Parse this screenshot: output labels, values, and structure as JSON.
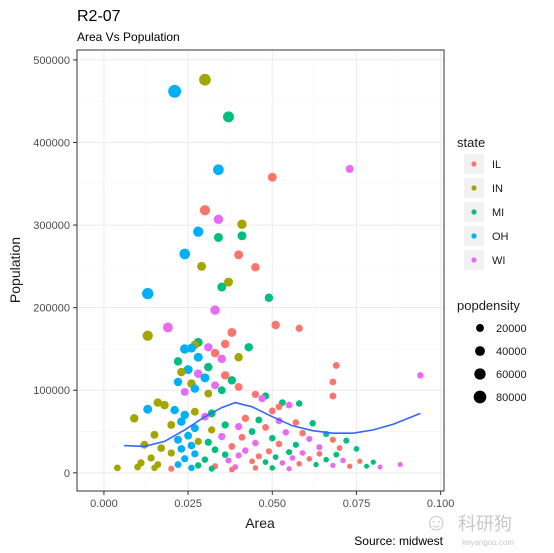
{
  "chart_data": {
    "type": "scatter",
    "title": "R2-07",
    "subtitle": "Area Vs Population",
    "xlabel": "Area",
    "ylabel": "Population",
    "caption": "Source: midwest",
    "xlim": [
      -0.008,
      0.101
    ],
    "ylim": [
      -22000,
      512000
    ],
    "x_ticks": [
      0.0,
      0.025,
      0.05,
      0.075,
      0.1
    ],
    "x_tick_labels": [
      "0.000",
      "0.025",
      "0.050",
      "0.075",
      "0.100"
    ],
    "y_ticks": [
      0,
      100000,
      200000,
      300000,
      400000,
      500000
    ],
    "y_tick_labels": [
      "0",
      "100000",
      "200000",
      "300000",
      "400000",
      "500000"
    ],
    "grid": true,
    "legend_position": "right",
    "color_legend": {
      "title": "state",
      "entries": [
        {
          "label": "IL",
          "color": "#F8766D"
        },
        {
          "label": "IN",
          "color": "#A3A500"
        },
        {
          "label": "MI",
          "color": "#00BF7D"
        },
        {
          "label": "OH",
          "color": "#00B0F6"
        },
        {
          "label": "WI",
          "color": "#E76BF3"
        }
      ]
    },
    "size_legend": {
      "title": "popdensity",
      "entries": [
        {
          "label": "20000",
          "value": 20000
        },
        {
          "label": "40000",
          "value": 40000
        },
        {
          "label": "60000",
          "value": 60000
        },
        {
          "label": "80000",
          "value": 80000
        }
      ]
    },
    "points": [
      {
        "state": "OH",
        "area": 0.021,
        "pop": 462000,
        "pd": 85000
      },
      {
        "state": "IN",
        "area": 0.03,
        "pop": 476000,
        "pd": 65000
      },
      {
        "state": "MI",
        "area": 0.037,
        "pop": 431000,
        "pd": 55000
      },
      {
        "state": "WI",
        "area": 0.073,
        "pop": 368000,
        "pd": 20000
      },
      {
        "state": "OH",
        "area": 0.034,
        "pop": 367000,
        "pd": 50000
      },
      {
        "state": "IL",
        "area": 0.05,
        "pop": 358000,
        "pd": 30000
      },
      {
        "state": "IL",
        "area": 0.03,
        "pop": 318000,
        "pd": 45000
      },
      {
        "state": "WI",
        "area": 0.034,
        "pop": 307000,
        "pd": 35000
      },
      {
        "state": "IN",
        "area": 0.041,
        "pop": 301000,
        "pd": 35000
      },
      {
        "state": "OH",
        "area": 0.028,
        "pop": 292000,
        "pd": 45000
      },
      {
        "state": "MI",
        "area": 0.034,
        "pop": 285000,
        "pd": 30000
      },
      {
        "state": "MI",
        "area": 0.041,
        "pop": 287000,
        "pd": 30000
      },
      {
        "state": "OH",
        "area": 0.024,
        "pop": 265000,
        "pd": 50000
      },
      {
        "state": "IL",
        "area": 0.04,
        "pop": 264000,
        "pd": 30000
      },
      {
        "state": "IN",
        "area": 0.029,
        "pop": 250000,
        "pd": 30000
      },
      {
        "state": "IL",
        "area": 0.045,
        "pop": 249000,
        "pd": 25000
      },
      {
        "state": "MI",
        "area": 0.035,
        "pop": 225000,
        "pd": 30000
      },
      {
        "state": "IN",
        "area": 0.037,
        "pop": 231000,
        "pd": 30000
      },
      {
        "state": "OH",
        "area": 0.013,
        "pop": 217000,
        "pd": 60000
      },
      {
        "state": "MI",
        "area": 0.049,
        "pop": 212000,
        "pd": 25000
      },
      {
        "state": "WI",
        "area": 0.033,
        "pop": 197000,
        "pd": 35000
      },
      {
        "state": "IL",
        "area": 0.051,
        "pop": 179000,
        "pd": 25000
      },
      {
        "state": "IL",
        "area": 0.058,
        "pop": 175000,
        "pd": 15000
      },
      {
        "state": "WI",
        "area": 0.019,
        "pop": 176000,
        "pd": 40000
      },
      {
        "state": "IN",
        "area": 0.013,
        "pop": 166000,
        "pd": 45000
      },
      {
        "state": "MI",
        "area": 0.028,
        "pop": 158000,
        "pd": 30000
      },
      {
        "state": "IN",
        "area": 0.027,
        "pop": 155000,
        "pd": 25000
      },
      {
        "state": "IL",
        "area": 0.038,
        "pop": 170000,
        "pd": 30000
      },
      {
        "state": "IL",
        "area": 0.036,
        "pop": 156000,
        "pd": 25000
      },
      {
        "state": "OH",
        "area": 0.024,
        "pop": 150000,
        "pd": 35000
      },
      {
        "state": "OH",
        "area": 0.026,
        "pop": 151000,
        "pd": 30000
      },
      {
        "state": "WI",
        "area": 0.031,
        "pop": 152000,
        "pd": 25000
      },
      {
        "state": "MI",
        "area": 0.043,
        "pop": 152000,
        "pd": 25000
      },
      {
        "state": "IL",
        "area": 0.069,
        "pop": 130000,
        "pd": 12000
      },
      {
        "state": "IL",
        "area": 0.068,
        "pop": 110000,
        "pd": 12000
      },
      {
        "state": "WI",
        "area": 0.094,
        "pop": 118000,
        "pd": 10000
      },
      {
        "state": "IL",
        "area": 0.068,
        "pop": 93000,
        "pd": 12000
      },
      {
        "state": "IL",
        "area": 0.033,
        "pop": 145000,
        "pd": 25000
      },
      {
        "state": "OH",
        "area": 0.028,
        "pop": 140000,
        "pd": 30000
      },
      {
        "state": "MI",
        "area": 0.022,
        "pop": 135000,
        "pd": 25000
      },
      {
        "state": "WI",
        "area": 0.035,
        "pop": 138000,
        "pd": 25000
      },
      {
        "state": "IN",
        "area": 0.04,
        "pop": 140000,
        "pd": 25000
      },
      {
        "state": "OH",
        "area": 0.025,
        "pop": 125000,
        "pd": 30000
      },
      {
        "state": "MI",
        "area": 0.031,
        "pop": 128000,
        "pd": 25000
      },
      {
        "state": "IN",
        "area": 0.023,
        "pop": 122000,
        "pd": 25000
      },
      {
        "state": "WI",
        "area": 0.028,
        "pop": 120000,
        "pd": 25000
      },
      {
        "state": "IL",
        "area": 0.036,
        "pop": 118000,
        "pd": 25000
      },
      {
        "state": "OH",
        "area": 0.03,
        "pop": 115000,
        "pd": 30000
      },
      {
        "state": "MI",
        "area": 0.038,
        "pop": 112000,
        "pd": 25000
      },
      {
        "state": "OH",
        "area": 0.022,
        "pop": 110000,
        "pd": 25000
      },
      {
        "state": "IN",
        "area": 0.026,
        "pop": 108000,
        "pd": 25000
      },
      {
        "state": "WI",
        "area": 0.033,
        "pop": 106000,
        "pd": 20000
      },
      {
        "state": "IL",
        "area": 0.04,
        "pop": 104000,
        "pd": 20000
      },
      {
        "state": "OH",
        "area": 0.027,
        "pop": 102000,
        "pd": 25000
      },
      {
        "state": "MI",
        "area": 0.035,
        "pop": 100000,
        "pd": 20000
      },
      {
        "state": "WI",
        "area": 0.024,
        "pop": 98000,
        "pd": 20000
      },
      {
        "state": "IN",
        "area": 0.031,
        "pop": 96000,
        "pd": 20000
      },
      {
        "state": "IL",
        "area": 0.045,
        "pop": 95000,
        "pd": 15000
      },
      {
        "state": "MI",
        "area": 0.048,
        "pop": 93000,
        "pd": 15000
      },
      {
        "state": "WI",
        "area": 0.047,
        "pop": 90000,
        "pd": 15000
      },
      {
        "state": "IN",
        "area": 0.016,
        "pop": 85000,
        "pd": 25000
      },
      {
        "state": "IN",
        "area": 0.018,
        "pop": 82000,
        "pd": 25000
      },
      {
        "state": "MI",
        "area": 0.053,
        "pop": 85000,
        "pd": 12000
      },
      {
        "state": "IL",
        "area": 0.052,
        "pop": 80000,
        "pd": 12000
      },
      {
        "state": "WI",
        "area": 0.055,
        "pop": 82000,
        "pd": 12000
      },
      {
        "state": "MI",
        "area": 0.058,
        "pop": 84000,
        "pd": 10000
      },
      {
        "state": "IL",
        "area": 0.05,
        "pop": 75000,
        "pd": 12000
      },
      {
        "state": "OH",
        "area": 0.013,
        "pop": 77000,
        "pd": 30000
      },
      {
        "state": "IN",
        "area": 0.009,
        "pop": 66000,
        "pd": 25000
      },
      {
        "state": "OH",
        "area": 0.021,
        "pop": 76000,
        "pd": 25000
      },
      {
        "state": "IN",
        "area": 0.027,
        "pop": 74000,
        "pd": 20000
      },
      {
        "state": "MI",
        "area": 0.032,
        "pop": 72000,
        "pd": 20000
      },
      {
        "state": "OH",
        "area": 0.024,
        "pop": 70000,
        "pd": 25000
      },
      {
        "state": "WI",
        "area": 0.03,
        "pop": 68000,
        "pd": 20000
      },
      {
        "state": "IL",
        "area": 0.042,
        "pop": 66000,
        "pd": 15000
      },
      {
        "state": "MI",
        "area": 0.046,
        "pop": 64000,
        "pd": 12000
      },
      {
        "state": "WI",
        "area": 0.052,
        "pop": 63000,
        "pd": 12000
      },
      {
        "state": "IL",
        "area": 0.057,
        "pop": 61000,
        "pd": 10000
      },
      {
        "state": "MI",
        "area": 0.062,
        "pop": 60000,
        "pd": 10000
      },
      {
        "state": "OH",
        "area": 0.023,
        "pop": 62000,
        "pd": 25000
      },
      {
        "state": "IN",
        "area": 0.02,
        "pop": 58000,
        "pd": 20000
      },
      {
        "state": "MI",
        "area": 0.036,
        "pop": 58000,
        "pd": 15000
      },
      {
        "state": "WI",
        "area": 0.04,
        "pop": 56000,
        "pd": 15000
      },
      {
        "state": "IL",
        "area": 0.048,
        "pop": 55000,
        "pd": 12000
      },
      {
        "state": "OH",
        "area": 0.027,
        "pop": 54000,
        "pd": 20000
      },
      {
        "state": "IN",
        "area": 0.032,
        "pop": 52000,
        "pd": 15000
      },
      {
        "state": "MI",
        "area": 0.044,
        "pop": 50000,
        "pd": 12000
      },
      {
        "state": "WI",
        "area": 0.054,
        "pop": 49000,
        "pd": 10000
      },
      {
        "state": "IL",
        "area": 0.059,
        "pop": 48000,
        "pd": 10000
      },
      {
        "state": "MI",
        "area": 0.066,
        "pop": 47000,
        "pd": 8000
      },
      {
        "state": "IN",
        "area": 0.015,
        "pop": 46000,
        "pd": 20000
      },
      {
        "state": "OH",
        "area": 0.025,
        "pop": 45000,
        "pd": 20000
      },
      {
        "state": "WI",
        "area": 0.035,
        "pop": 44000,
        "pd": 15000
      },
      {
        "state": "IL",
        "area": 0.041,
        "pop": 43000,
        "pd": 12000
      },
      {
        "state": "MI",
        "area": 0.05,
        "pop": 42000,
        "pd": 10000
      },
      {
        "state": "WI",
        "area": 0.061,
        "pop": 41000,
        "pd": 8000
      },
      {
        "state": "IL",
        "area": 0.068,
        "pop": 40000,
        "pd": 8000
      },
      {
        "state": "MI",
        "area": 0.072,
        "pop": 39000,
        "pd": 8000
      },
      {
        "state": "OH",
        "area": 0.022,
        "pop": 40000,
        "pd": 20000
      },
      {
        "state": "IN",
        "area": 0.028,
        "pop": 38000,
        "pd": 15000
      },
      {
        "state": "MI",
        "area": 0.031,
        "pop": 37000,
        "pd": 15000
      },
      {
        "state": "WI",
        "area": 0.045,
        "pop": 36000,
        "pd": 10000
      },
      {
        "state": "IL",
        "area": 0.052,
        "pop": 35000,
        "pd": 10000
      },
      {
        "state": "MI",
        "area": 0.057,
        "pop": 34000,
        "pd": 8000
      },
      {
        "state": "IN",
        "area": 0.012,
        "pop": 34000,
        "pd": 20000
      },
      {
        "state": "OH",
        "area": 0.026,
        "pop": 33000,
        "pd": 18000
      },
      {
        "state": "IL",
        "area": 0.038,
        "pop": 32000,
        "pd": 12000
      },
      {
        "state": "WI",
        "area": 0.064,
        "pop": 31000,
        "pd": 8000
      },
      {
        "state": "IL",
        "area": 0.07,
        "pop": 30000,
        "pd": 6000
      },
      {
        "state": "MI",
        "area": 0.075,
        "pop": 29000,
        "pd": 6000
      },
      {
        "state": "IN",
        "area": 0.017,
        "pop": 30000,
        "pd": 18000
      },
      {
        "state": "OH",
        "area": 0.023,
        "pop": 29000,
        "pd": 18000
      },
      {
        "state": "MI",
        "area": 0.033,
        "pop": 28000,
        "pd": 12000
      },
      {
        "state": "WI",
        "area": 0.042,
        "pop": 27000,
        "pd": 10000
      },
      {
        "state": "IL",
        "area": 0.049,
        "pop": 26000,
        "pd": 8000
      },
      {
        "state": "MI",
        "area": 0.055,
        "pop": 25000,
        "pd": 8000
      },
      {
        "state": "WI",
        "area": 0.059,
        "pop": 24000,
        "pd": 6000
      },
      {
        "state": "IL",
        "area": 0.064,
        "pop": 23000,
        "pd": 6000
      },
      {
        "state": "MI",
        "area": 0.069,
        "pop": 22000,
        "pd": 6000
      },
      {
        "state": "IN",
        "area": 0.02,
        "pop": 24000,
        "pd": 15000
      },
      {
        "state": "OH",
        "area": 0.027,
        "pop": 23000,
        "pd": 15000
      },
      {
        "state": "MI",
        "area": 0.036,
        "pop": 22000,
        "pd": 10000
      },
      {
        "state": "WI",
        "area": 0.04,
        "pop": 21000,
        "pd": 8000
      },
      {
        "state": "IL",
        "area": 0.046,
        "pop": 20000,
        "pd": 8000
      },
      {
        "state": "MI",
        "area": 0.051,
        "pop": 19000,
        "pd": 6000
      },
      {
        "state": "WI",
        "area": 0.056,
        "pop": 18000,
        "pd": 6000
      },
      {
        "state": "IL",
        "area": 0.061,
        "pop": 17000,
        "pd": 5000
      },
      {
        "state": "MI",
        "area": 0.066,
        "pop": 16000,
        "pd": 5000
      },
      {
        "state": "WI",
        "area": 0.071,
        "pop": 15000,
        "pd": 5000
      },
      {
        "state": "IL",
        "area": 0.076,
        "pop": 14000,
        "pd": 4000
      },
      {
        "state": "MI",
        "area": 0.08,
        "pop": 13000,
        "pd": 4000
      },
      {
        "state": "IN",
        "area": 0.014,
        "pop": 18000,
        "pd": 15000
      },
      {
        "state": "OH",
        "area": 0.024,
        "pop": 17000,
        "pd": 15000
      },
      {
        "state": "MI",
        "area": 0.03,
        "pop": 16000,
        "pd": 10000
      },
      {
        "state": "WI",
        "area": 0.037,
        "pop": 15000,
        "pd": 8000
      },
      {
        "state": "IL",
        "area": 0.044,
        "pop": 14000,
        "pd": 6000
      },
      {
        "state": "MI",
        "area": 0.048,
        "pop": 13000,
        "pd": 6000
      },
      {
        "state": "WI",
        "area": 0.053,
        "pop": 12000,
        "pd": 5000
      },
      {
        "state": "IL",
        "area": 0.058,
        "pop": 11000,
        "pd": 5000
      },
      {
        "state": "MI",
        "area": 0.063,
        "pop": 10000,
        "pd": 4000
      },
      {
        "state": "WI",
        "area": 0.068,
        "pop": 9000,
        "pd": 4000
      },
      {
        "state": "IL",
        "area": 0.073,
        "pop": 8000,
        "pd": 4000
      },
      {
        "state": "MI",
        "area": 0.078,
        "pop": 8000,
        "pd": 3000
      },
      {
        "state": "WI",
        "area": 0.082,
        "pop": 7000,
        "pd": 3000
      },
      {
        "state": "WI",
        "area": 0.088,
        "pop": 10000,
        "pd": 3000
      },
      {
        "state": "IN",
        "area": 0.011,
        "pop": 12000,
        "pd": 15000
      },
      {
        "state": "IN",
        "area": 0.016,
        "pop": 10000,
        "pd": 12000
      },
      {
        "state": "OH",
        "area": 0.022,
        "pop": 10000,
        "pd": 12000
      },
      {
        "state": "MI",
        "area": 0.028,
        "pop": 9000,
        "pd": 10000
      },
      {
        "state": "IL",
        "area": 0.033,
        "pop": 8000,
        "pd": 8000
      },
      {
        "state": "WI",
        "area": 0.039,
        "pop": 7000,
        "pd": 6000
      },
      {
        "state": "IL",
        "area": 0.045,
        "pop": 6000,
        "pd": 5000
      },
      {
        "state": "MI",
        "area": 0.05,
        "pop": 6000,
        "pd": 5000
      },
      {
        "state": "WI",
        "area": 0.055,
        "pop": 5000,
        "pd": 4000
      },
      {
        "state": "IN",
        "area": 0.004,
        "pop": 6000,
        "pd": 12000
      },
      {
        "state": "IN",
        "area": 0.01,
        "pop": 7000,
        "pd": 12000
      },
      {
        "state": "IN",
        "area": 0.015,
        "pop": 6000,
        "pd": 10000
      },
      {
        "state": "IL",
        "area": 0.02,
        "pop": 5000,
        "pd": 8000
      },
      {
        "state": "OH",
        "area": 0.026,
        "pop": 6000,
        "pd": 10000
      },
      {
        "state": "MI",
        "area": 0.032,
        "pop": 5000,
        "pd": 8000
      },
      {
        "state": "IL",
        "area": 0.038,
        "pop": 4000,
        "pd": 6000
      }
    ],
    "smooth": {
      "color": "#3366FF",
      "x": [
        0.006,
        0.012,
        0.018,
        0.024,
        0.03,
        0.035,
        0.039,
        0.044,
        0.05,
        0.056,
        0.062,
        0.068,
        0.074,
        0.08,
        0.086,
        0.094
      ],
      "y": [
        33000,
        32000,
        38000,
        52000,
        68000,
        79000,
        85000,
        80000,
        68000,
        57000,
        51000,
        48000,
        48000,
        52000,
        59000,
        72000
      ]
    }
  },
  "watermark": {
    "main": "科研狗",
    "sub": "keyangou.com"
  }
}
